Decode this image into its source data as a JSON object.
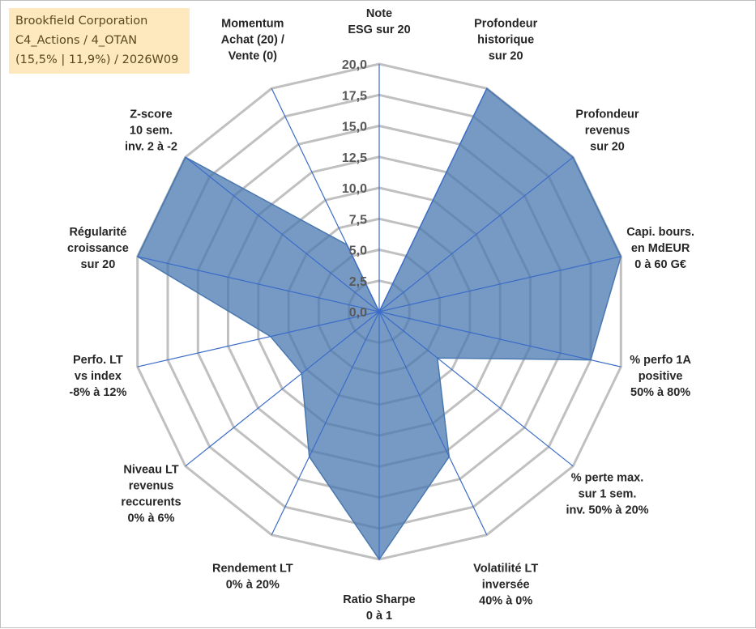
{
  "info": {
    "line1": "Brookfield Corporation",
    "line2": "C4_Actions / 4_OTAN",
    "line3": "(15,5% | 11,9%) / 2026W09"
  },
  "colors": {
    "fill": "#4a78b0",
    "grid": "#c0c0c0",
    "spoke": "#3b6cc8"
  },
  "chart_data": {
    "type": "radar",
    "title": "",
    "rmin": 0,
    "rmax": 20,
    "tick_values": [
      0,
      2.5,
      5,
      7.5,
      10,
      12.5,
      15,
      17.5,
      20
    ],
    "tick_labels": [
      "0,0",
      "2,5",
      "5,0",
      "7,5",
      "10,0",
      "12,5",
      "15,0",
      "17,5",
      "20,0"
    ],
    "axes": [
      {
        "label": [
          "Note",
          "ESG sur 20"
        ],
        "value": 0
      },
      {
        "label": [
          "Profondeur",
          "historique",
          "sur 20"
        ],
        "value": 20
      },
      {
        "label": [
          "Profondeur",
          "revenus",
          "sur 20"
        ],
        "value": 20
      },
      {
        "label": [
          "Capi. bours.",
          "en MdEUR",
          "0 à 60 G€"
        ],
        "value": 20
      },
      {
        "label": [
          "% perfo 1A",
          "positive",
          "50% à 80%"
        ],
        "value": 17.5
      },
      {
        "label": [
          "% perte max.",
          "sur 1 sem.",
          "inv. 50% à 20%"
        ],
        "value": 6
      },
      {
        "label": [
          "Volatilité LT",
          "inversée",
          "40% à 0%"
        ],
        "value": 13
      },
      {
        "label": [
          "Ratio Sharpe",
          "0 à 1"
        ],
        "value": 20
      },
      {
        "label": [
          "Rendement LT",
          "0% à 20%"
        ],
        "value": 13
      },
      {
        "label": [
          "Niveau LT",
          "revenus",
          "reccurents",
          "0% à 6%"
        ],
        "value": 8
      },
      {
        "label": [
          "Perfo. LT",
          "vs index",
          "-8% à 12%"
        ],
        "value": 9
      },
      {
        "label": [
          "Régularité",
          "croissance",
          "sur 20"
        ],
        "value": 20
      },
      {
        "label": [
          "Z-score",
          "10 sem.",
          "inv. 2 à -2"
        ],
        "value": 20
      },
      {
        "label": [
          "Momentum",
          "Achat (20) /",
          "Vente (0)"
        ],
        "value": 6
      }
    ]
  }
}
